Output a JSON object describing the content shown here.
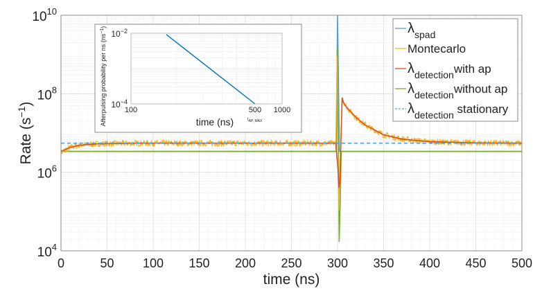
{
  "chart_data": [
    {
      "type": "line",
      "xlabel": "time (ns)",
      "ylabel": "Rate (s",
      "ylabel_sup": "−1",
      "ylabel_end": ")",
      "xlim": [
        0,
        500
      ],
      "ylim": [
        10000,
        10000000000
      ],
      "yscale": "log",
      "grid": true,
      "x_ticks": [
        "0",
        "50",
        "100",
        "150",
        "200",
        "250",
        "300",
        "350",
        "400",
        "450",
        "500"
      ],
      "x_tick_values": [
        0,
        50,
        100,
        150,
        200,
        250,
        300,
        350,
        400,
        450,
        500
      ],
      "y_ticks": [
        {
          "base": "10",
          "exp": "4",
          "value": 10000
        },
        {
          "base": "10",
          "exp": "6",
          "value": 1000000
        },
        {
          "base": "10",
          "exp": "8",
          "value": 100000000
        },
        {
          "base": "10",
          "exp": "10",
          "value": 10000000000
        }
      ],
      "legend_position": "top-right",
      "series": [
        {
          "name_sym": "λ",
          "name_sub": "spad",
          "name_text": "",
          "color": "#4d9fd8",
          "style": "solid",
          "points": [
            [
              0,
              3400000
            ],
            [
              298.5,
              3400000
            ],
            [
              300,
              10000000000
            ],
            [
              302,
              3400000
            ],
            [
              500,
              3400000
            ]
          ]
        },
        {
          "name_sym": "",
          "name_sub": "",
          "name_text": "Montecarlo",
          "color": "#f2b21b",
          "style": "solid",
          "noisy": true,
          "points": [
            [
              0,
              3200000
            ],
            [
              10,
              4300000
            ],
            [
              20,
              4900000
            ],
            [
              40,
              5300000
            ],
            [
              80,
              5500000
            ],
            [
              298,
              5500000
            ],
            [
              299.5,
              900000000
            ],
            [
              300.5,
              2000000
            ],
            [
              301.5,
              100000
            ],
            [
              303,
              2000000
            ],
            [
              305,
              75000000
            ],
            [
              310,
              45000000
            ],
            [
              320,
              25000000
            ],
            [
              330,
              16000000
            ],
            [
              340,
              12000000
            ],
            [
              350,
              9000000
            ],
            [
              370,
              7000000
            ],
            [
              400,
              6000000
            ],
            [
              450,
              5600000
            ],
            [
              500,
              5500000
            ]
          ]
        },
        {
          "name_sym": "λ",
          "name_sub": "detection",
          "name_text": "with ap",
          "color": "#d95319",
          "style": "solid",
          "points": [
            [
              0,
              3400000
            ],
            [
              10,
              4300000
            ],
            [
              20,
              4900000
            ],
            [
              40,
              5300000
            ],
            [
              80,
              5500000
            ],
            [
              298,
              5500000
            ],
            [
              300.5,
              1200000
            ],
            [
              301.5,
              400000
            ],
            [
              302.5,
              600000
            ],
            [
              305,
              80000000
            ],
            [
              307,
              55000000
            ],
            [
              310,
              45000000
            ],
            [
              320,
              25000000
            ],
            [
              330,
              16000000
            ],
            [
              340,
              12000000
            ],
            [
              350,
              9000000
            ],
            [
              370,
              7000000
            ],
            [
              400,
              6000000
            ],
            [
              450,
              5600000
            ],
            [
              500,
              5500000
            ]
          ]
        },
        {
          "name_sym": "λ",
          "name_sub": "detection",
          "name_text": "without ap",
          "color": "#77ac30",
          "style": "solid",
          "points": [
            [
              0,
              3400000
            ],
            [
              298.8,
              3400000
            ],
            [
              299.8,
              1500000000
            ],
            [
              301.8,
              17000
            ],
            [
              303,
              200000
            ],
            [
              304,
              3400000
            ],
            [
              500,
              3400000
            ]
          ]
        },
        {
          "name_sym": "λ",
          "name_sub": "detection",
          "name_text": " stationary",
          "color": "#4d9fd8",
          "style": "dashed",
          "points": [
            [
              0,
              5500000
            ],
            [
              500,
              5500000
            ]
          ]
        }
      ]
    },
    {
      "type": "line",
      "xlabel": "time (ns)",
      "ylabel": "Afterpulsing probability per ns (ns",
      "ylabel_sup": "−1",
      "ylabel_end": ")",
      "xscale": "log",
      "yscale": "log",
      "xlim": [
        100,
        1000
      ],
      "ylim": [
        0.0001,
        0.01
      ],
      "grid": true,
      "x_ticks": [
        "100",
        "500",
        "1000"
      ],
      "x_tick_values": [
        100,
        500,
        1000
      ],
      "x_annotation": "t",
      "x_annotation_sub": "AP, MAX",
      "y_ticks": [
        {
          "base": "10",
          "exp": "−4",
          "value": 0.0001
        },
        {
          "base": "10",
          "exp": "−2",
          "value": 0.01
        }
      ],
      "series": [
        {
          "color": "#0072bd",
          "points": [
            [
              170,
              0.0092
            ],
            [
              500,
              0.0001
            ]
          ]
        }
      ]
    }
  ]
}
